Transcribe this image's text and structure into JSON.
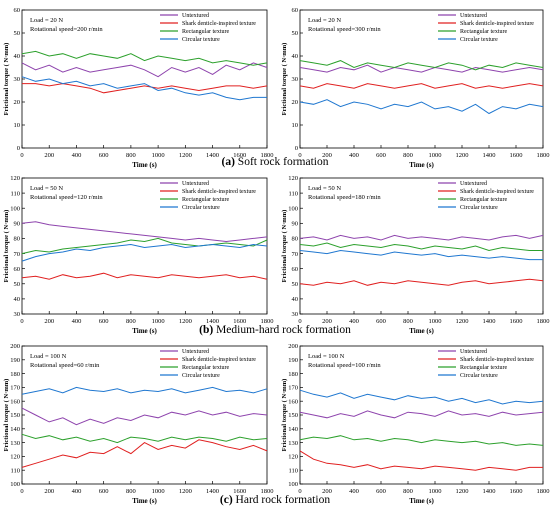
{
  "captions": [
    {
      "letter": "(a)",
      "text": " Soft rock formation"
    },
    {
      "letter": "(b)",
      "text": " Medium-hard rock formation"
    },
    {
      "letter": "(c)",
      "text": " Hard rock formation"
    }
  ],
  "legend": [
    "Untextured",
    "Shark denticle-inspired texture",
    "Rectangular texture",
    "Circular texture"
  ],
  "colors": {
    "Untextured": "#8e44ad",
    "Shark denticle-inspired texture": "#e02020",
    "Rectangular texture": "#2ca02c",
    "Circular texture": "#1f77d0"
  },
  "chart_data": [
    {
      "type": "line",
      "panel": "a-left",
      "annotation": [
        "Load = 20 N",
        "Rotational speed=200 r/min"
      ],
      "xlabel": "Time (s)",
      "ylabel": "Frictional torque ( N·mm)",
      "xlim": [
        0,
        1800
      ],
      "ylim": [
        0,
        60
      ],
      "xticks": [
        0,
        200,
        400,
        600,
        800,
        1000,
        1200,
        1400,
        1600,
        1800
      ],
      "yticks": [
        0,
        10,
        20,
        30,
        40,
        50,
        60
      ],
      "x": [
        0,
        100,
        200,
        300,
        400,
        500,
        600,
        700,
        800,
        900,
        1000,
        1100,
        1200,
        1300,
        1400,
        1500,
        1600,
        1700,
        1800
      ],
      "series": [
        {
          "name": "Untextured",
          "values": [
            37,
            34,
            36,
            33,
            35,
            33,
            34,
            35,
            36,
            34,
            31,
            35,
            33,
            35,
            32,
            36,
            34,
            37,
            35
          ]
        },
        {
          "name": "Shark denticle-inspired texture",
          "values": [
            28,
            28,
            27,
            28,
            27,
            26,
            24,
            25,
            26,
            27,
            26,
            27,
            26,
            25,
            26,
            27,
            27,
            26,
            27
          ]
        },
        {
          "name": "Rectangular texture",
          "values": [
            41,
            42,
            40,
            41,
            39,
            41,
            40,
            39,
            41,
            38,
            40,
            39,
            38,
            39,
            37,
            38,
            37,
            36,
            37
          ]
        },
        {
          "name": "Circular texture",
          "values": [
            31,
            29,
            30,
            28,
            29,
            27,
            28,
            26,
            27,
            28,
            25,
            26,
            24,
            23,
            24,
            22,
            21,
            22,
            22
          ]
        }
      ]
    },
    {
      "type": "line",
      "panel": "a-right",
      "annotation": [
        "Load = 20 N",
        "Rotational speed=300 r/min"
      ],
      "xlabel": "Time (s)",
      "ylabel": "Frictional torque ( N·mm)",
      "xlim": [
        0,
        1800
      ],
      "ylim": [
        0,
        60
      ],
      "xticks": [
        0,
        200,
        400,
        600,
        800,
        1000,
        1200,
        1400,
        1600,
        1800
      ],
      "yticks": [
        0,
        10,
        20,
        30,
        40,
        50,
        60
      ],
      "x": [
        0,
        100,
        200,
        300,
        400,
        500,
        600,
        700,
        800,
        900,
        1000,
        1100,
        1200,
        1300,
        1400,
        1500,
        1600,
        1700,
        1800
      ],
      "series": [
        {
          "name": "Untextured",
          "values": [
            35,
            34,
            33,
            35,
            34,
            36,
            33,
            35,
            34,
            33,
            35,
            34,
            33,
            35,
            34,
            33,
            34,
            35,
            34
          ]
        },
        {
          "name": "Shark denticle-inspired texture",
          "values": [
            27,
            26,
            28,
            27,
            26,
            28,
            27,
            26,
            27,
            28,
            26,
            27,
            28,
            26,
            27,
            26,
            27,
            28,
            27
          ]
        },
        {
          "name": "Rectangular texture",
          "values": [
            38,
            37,
            36,
            38,
            35,
            37,
            36,
            35,
            37,
            36,
            35,
            37,
            36,
            34,
            36,
            35,
            37,
            36,
            35
          ]
        },
        {
          "name": "Circular texture",
          "values": [
            20,
            19,
            21,
            18,
            20,
            19,
            17,
            19,
            18,
            20,
            17,
            18,
            16,
            19,
            15,
            18,
            17,
            19,
            18
          ]
        }
      ]
    },
    {
      "type": "line",
      "panel": "b-left",
      "annotation": [
        "Load = 50 N",
        "Rotational speed=120 r/min"
      ],
      "xlabel": "Time (s)",
      "ylabel": "Frictional torque ( N·mm)",
      "xlim": [
        0,
        1800
      ],
      "ylim": [
        30,
        120
      ],
      "xticks": [
        0,
        200,
        400,
        600,
        800,
        1000,
        1200,
        1400,
        1600,
        1800
      ],
      "yticks": [
        30,
        40,
        50,
        60,
        70,
        80,
        90,
        100,
        110,
        120
      ],
      "x": [
        0,
        100,
        200,
        300,
        400,
        500,
        600,
        700,
        800,
        900,
        1000,
        1100,
        1200,
        1300,
        1400,
        1500,
        1600,
        1700,
        1800
      ],
      "series": [
        {
          "name": "Untextured",
          "values": [
            90,
            91,
            89,
            88,
            87,
            86,
            85,
            84,
            83,
            82,
            81,
            80,
            79,
            80,
            79,
            78,
            79,
            80,
            81
          ]
        },
        {
          "name": "Shark denticle-inspired texture",
          "values": [
            54,
            55,
            53,
            56,
            54,
            55,
            57,
            54,
            56,
            55,
            54,
            56,
            55,
            54,
            55,
            56,
            54,
            55,
            53
          ]
        },
        {
          "name": "Rectangular texture",
          "values": [
            70,
            72,
            71,
            73,
            74,
            75,
            76,
            77,
            79,
            78,
            80,
            77,
            76,
            75,
            76,
            77,
            76,
            75,
            79
          ]
        },
        {
          "name": "Circular texture",
          "values": [
            65,
            68,
            70,
            71,
            73,
            72,
            74,
            75,
            76,
            74,
            75,
            76,
            74,
            75,
            76,
            75,
            74,
            76,
            75
          ]
        }
      ]
    },
    {
      "type": "line",
      "panel": "b-right",
      "annotation": [
        "Load = 50 N",
        "Rotational speed=180 r/min"
      ],
      "xlabel": "Time (s)",
      "ylabel": "Frictional torque ( N·mm)",
      "xlim": [
        0,
        1800
      ],
      "ylim": [
        30,
        120
      ],
      "xticks": [
        0,
        200,
        400,
        600,
        800,
        1000,
        1200,
        1400,
        1600,
        1800
      ],
      "yticks": [
        30,
        40,
        50,
        60,
        70,
        80,
        90,
        100,
        110,
        120
      ],
      "x": [
        0,
        100,
        200,
        300,
        400,
        500,
        600,
        700,
        800,
        900,
        1000,
        1100,
        1200,
        1300,
        1400,
        1500,
        1600,
        1700,
        1800
      ],
      "series": [
        {
          "name": "Untextured",
          "values": [
            80,
            81,
            79,
            82,
            80,
            81,
            79,
            82,
            80,
            81,
            80,
            79,
            81,
            80,
            79,
            81,
            82,
            80,
            82
          ]
        },
        {
          "name": "Shark denticle-inspired texture",
          "values": [
            50,
            49,
            51,
            50,
            52,
            49,
            51,
            50,
            52,
            51,
            50,
            49,
            51,
            52,
            50,
            51,
            52,
            53,
            52
          ]
        },
        {
          "name": "Rectangular texture",
          "values": [
            76,
            75,
            77,
            74,
            76,
            75,
            74,
            76,
            75,
            73,
            75,
            74,
            73,
            75,
            72,
            74,
            73,
            72,
            72
          ]
        },
        {
          "name": "Circular texture",
          "values": [
            72,
            71,
            70,
            72,
            71,
            70,
            69,
            71,
            70,
            69,
            70,
            68,
            69,
            68,
            67,
            68,
            67,
            66,
            66
          ]
        }
      ]
    },
    {
      "type": "line",
      "panel": "c-left",
      "annotation": [
        "Load = 100 N",
        "Rotational speed=60 r/min"
      ],
      "xlabel": "Time (s)",
      "ylabel": "Frictional torque ( N·mm)",
      "xlim": [
        0,
        1800
      ],
      "ylim": [
        100,
        200
      ],
      "xticks": [
        0,
        200,
        400,
        600,
        800,
        1000,
        1200,
        1400,
        1600,
        1800
      ],
      "yticks": [
        100,
        110,
        120,
        130,
        140,
        150,
        160,
        170,
        180,
        190,
        200
      ],
      "x": [
        0,
        100,
        200,
        300,
        400,
        500,
        600,
        700,
        800,
        900,
        1000,
        1100,
        1200,
        1300,
        1400,
        1500,
        1600,
        1700,
        1800
      ],
      "series": [
        {
          "name": "Untextured",
          "values": [
            155,
            150,
            145,
            148,
            143,
            147,
            144,
            148,
            146,
            150,
            148,
            152,
            150,
            153,
            150,
            152,
            149,
            151,
            150
          ]
        },
        {
          "name": "Shark denticle-inspired texture",
          "values": [
            112,
            115,
            118,
            121,
            119,
            123,
            122,
            127,
            122,
            130,
            125,
            128,
            126,
            132,
            130,
            127,
            125,
            128,
            124
          ]
        },
        {
          "name": "Rectangular texture",
          "values": [
            136,
            133,
            135,
            132,
            134,
            131,
            133,
            130,
            134,
            133,
            131,
            134,
            132,
            134,
            133,
            131,
            134,
            132,
            133
          ]
        },
        {
          "name": "Circular texture",
          "values": [
            165,
            167,
            169,
            166,
            170,
            168,
            167,
            169,
            166,
            168,
            167,
            169,
            166,
            168,
            170,
            167,
            168,
            166,
            169
          ]
        }
      ]
    },
    {
      "type": "line",
      "panel": "c-right",
      "annotation": [
        "Load = 100 N",
        "Rotational speed=100 r/min"
      ],
      "xlabel": "Time (s)",
      "ylabel": "Frictional torque ( N·mm)",
      "xlim": [
        0,
        1800
      ],
      "ylim": [
        100,
        200
      ],
      "xticks": [
        0,
        200,
        400,
        600,
        800,
        1000,
        1200,
        1400,
        1600,
        1800
      ],
      "yticks": [
        100,
        110,
        120,
        130,
        140,
        150,
        160,
        170,
        180,
        190,
        200
      ],
      "x": [
        0,
        100,
        200,
        300,
        400,
        500,
        600,
        700,
        800,
        900,
        1000,
        1100,
        1200,
        1300,
        1400,
        1500,
        1600,
        1700,
        1800
      ],
      "series": [
        {
          "name": "Untextured",
          "values": [
            152,
            150,
            148,
            151,
            149,
            153,
            150,
            148,
            152,
            151,
            149,
            153,
            150,
            151,
            149,
            152,
            150,
            151,
            152
          ]
        },
        {
          "name": "Shark denticle-inspired texture",
          "values": [
            124,
            118,
            115,
            114,
            112,
            114,
            111,
            113,
            112,
            111,
            113,
            112,
            111,
            110,
            112,
            111,
            110,
            112,
            112
          ]
        },
        {
          "name": "Rectangular texture",
          "values": [
            132,
            134,
            133,
            135,
            132,
            133,
            131,
            133,
            132,
            130,
            132,
            131,
            130,
            131,
            129,
            130,
            128,
            129,
            128
          ]
        },
        {
          "name": "Circular texture",
          "values": [
            168,
            165,
            163,
            166,
            162,
            165,
            163,
            161,
            164,
            162,
            163,
            160,
            162,
            159,
            161,
            158,
            160,
            159,
            160
          ]
        }
      ]
    }
  ]
}
